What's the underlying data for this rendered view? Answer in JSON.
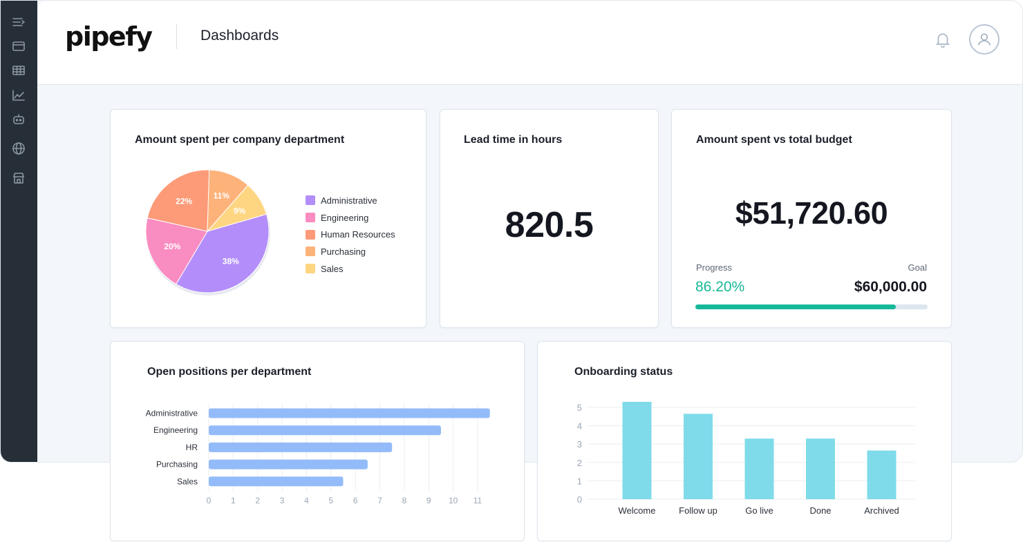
{
  "header": {
    "logo_text": "pipefy",
    "title": "Dashboards",
    "icons": [
      "bell-icon",
      "user-avatar-icon"
    ]
  },
  "sidebar": {
    "items": [
      {
        "icon": "menu-collapse-icon"
      },
      {
        "icon": "card-icon"
      },
      {
        "icon": "table-icon"
      },
      {
        "icon": "chart-icon"
      },
      {
        "icon": "robot-icon"
      },
      {
        "icon": "globe-icon"
      },
      {
        "icon": "store-icon"
      }
    ]
  },
  "cards": {
    "pie": {
      "title": "Amount spent per company department",
      "chart_data": {
        "type": "pie",
        "title": "Amount spent per company department",
        "labels": [
          "Administrative",
          "Engineering",
          "Human Resources",
          "Purchasing",
          "Sales"
        ],
        "values": [
          38,
          20,
          22,
          11,
          9
        ],
        "value_labels": [
          "38%",
          "20%",
          "22%",
          "11%",
          "9%"
        ],
        "colors": [
          "#b38efa",
          "#f98cc0",
          "#fd9a78",
          "#fdb27a",
          "#fed581"
        ],
        "legend_position": "right"
      }
    },
    "lead_time": {
      "title": "Lead time in hours",
      "value": "820.5"
    },
    "budget": {
      "title": "Amount spent vs total budget",
      "value": "$51,720.60",
      "progress_label": "Progress",
      "goal_label": "Goal",
      "progress_value": "86.20%",
      "progress_fraction": 0.862,
      "goal_value": "$60,000.00",
      "accent_color": "#16b89a"
    },
    "open_positions": {
      "title": "Open positions per department",
      "chart_data": {
        "type": "bar",
        "orientation": "horizontal",
        "title": "Open positions per department",
        "categories": [
          "Administrative",
          "Engineering",
          "HR",
          "Purchasing",
          "Sales"
        ],
        "values": [
          11.5,
          9.5,
          7.5,
          6.5,
          5.5
        ],
        "x_ticks": [
          "0",
          "1",
          "2",
          "3",
          "4",
          "5",
          "6",
          "7",
          "8",
          "9",
          "10",
          "11"
        ],
        "xlim": [
          0,
          11.5
        ],
        "color": "#93bbf9",
        "grid": true
      }
    },
    "onboarding": {
      "title": "Onboarding status",
      "chart_data": {
        "type": "bar",
        "orientation": "vertical",
        "title": "Onboarding status",
        "categories": [
          "Welcome",
          "Follow up",
          "Go live",
          "Done",
          "Archived"
        ],
        "values": [
          5.3,
          4.65,
          3.3,
          3.3,
          2.65
        ],
        "y_ticks": [
          "0",
          "1",
          "2",
          "3",
          "4",
          "5"
        ],
        "ylim": [
          0,
          5.3
        ],
        "color": "#7fdbe9",
        "grid": true
      }
    }
  }
}
